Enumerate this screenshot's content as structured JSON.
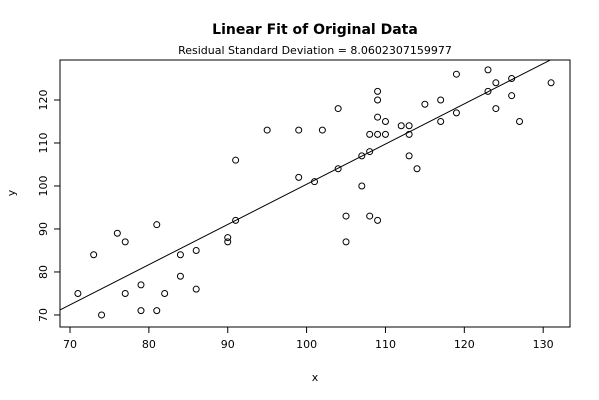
{
  "chart_data": {
    "type": "scatter",
    "title": "Linear Fit of Original Data",
    "subtitle": "Residual Standard Deviation =  8.0602307159977",
    "x_label": "x",
    "y_label": "y",
    "x": [
      71,
      73,
      74,
      76,
      77,
      77,
      79,
      79,
      81,
      81,
      82,
      84,
      84,
      86,
      86,
      90,
      90,
      91,
      91,
      95,
      99,
      99,
      101,
      102,
      104,
      104,
      105,
      105,
      107,
      107,
      108,
      108,
      108,
      109,
      109,
      109,
      109,
      109,
      110,
      110,
      112,
      113,
      113,
      113,
      114,
      115,
      117,
      117,
      119,
      119,
      123,
      123,
      124,
      124,
      126,
      126,
      127,
      131
    ],
    "y": [
      75,
      84,
      70,
      89,
      87,
      75,
      77,
      71,
      91,
      71,
      75,
      84,
      79,
      85,
      76,
      88,
      87,
      106,
      92,
      113,
      113,
      102,
      101,
      113,
      118,
      104,
      93,
      87,
      107,
      100,
      112,
      108,
      93,
      122,
      120,
      116,
      112,
      92,
      115,
      112,
      114,
      114,
      112,
      107,
      104,
      119,
      120,
      115,
      126,
      117,
      127,
      122,
      124,
      118,
      125,
      121,
      115,
      124
    ],
    "color": "#000000",
    "fit": {
      "intercept": 6.9,
      "slope": 0.935
    },
    "xlim": [
      68.73,
      133.4
    ],
    "ylim": [
      67.2,
      129.3
    ],
    "xticks": [
      70,
      80,
      90,
      100,
      110,
      120,
      130
    ],
    "yticks": [
      70,
      80,
      90,
      100,
      110,
      120
    ]
  }
}
